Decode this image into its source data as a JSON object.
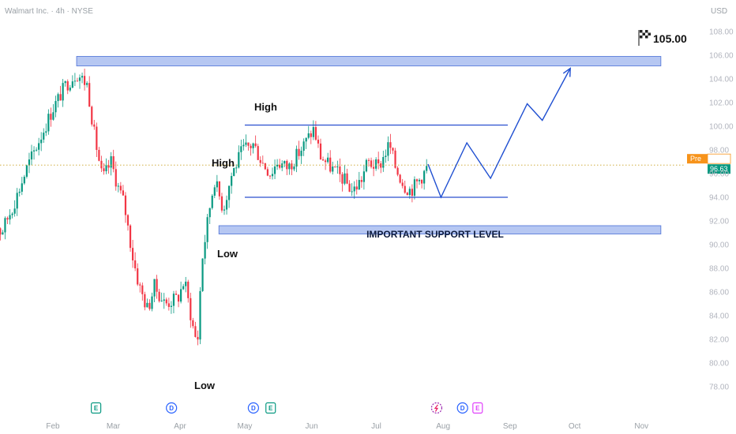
{
  "chart_data": {
    "type": "candlestick",
    "title": "Walmart Inc. · 4h · NYSE",
    "currency": "USD",
    "y_ticks": [
      "78.00",
      "80.00",
      "82.00",
      "84.00",
      "86.00",
      "88.00",
      "90.00",
      "92.00",
      "94.00",
      "96.00",
      "98.00",
      "100.00",
      "102.00",
      "104.00",
      "106.00",
      "108.00"
    ],
    "ylim": [
      77,
      109
    ],
    "x_ticks": [
      "Feb",
      "Mar",
      "Apr",
      "May",
      "Jun",
      "Jul",
      "Aug",
      "Sep",
      "Oct",
      "Nov"
    ],
    "price_path": [
      [
        "Jan 02",
        93.0
      ],
      [
        "Jan 08",
        91.0
      ],
      [
        "Jan 14",
        93.5
      ],
      [
        "Jan 20",
        96.5
      ],
      [
        "Jan 26",
        99.0
      ],
      [
        "Feb 01",
        101.5
      ],
      [
        "Feb 07",
        103.5
      ],
      [
        "Feb 12",
        104.5
      ],
      [
        "Feb 17",
        103.5
      ],
      [
        "Feb 20",
        99.5
      ],
      [
        "Feb 24",
        95.5
      ],
      [
        "Feb 28",
        97.0
      ],
      [
        "Mar 03",
        95.0
      ],
      [
        "Mar 06",
        93.5
      ],
      [
        "Mar 10",
        89.0
      ],
      [
        "Mar 13",
        86.5
      ],
      [
        "Mar 17",
        84.5
      ],
      [
        "Mar 20",
        86.5
      ],
      [
        "Mar 25",
        85.0
      ],
      [
        "Mar 31",
        85.5
      ],
      [
        "Apr 03",
        87.0
      ],
      [
        "Apr 07",
        83.0
      ],
      [
        "Apr 09",
        81.5
      ],
      [
        "Apr 11",
        88.5
      ],
      [
        "Apr 15",
        93.5
      ],
      [
        "Apr 17",
        95.5
      ],
      [
        "Apr 21",
        93.0
      ],
      [
        "Apr 25",
        96.0
      ],
      [
        "Apr 30",
        98.0
      ],
      [
        "May 05",
        98.5
      ],
      [
        "May 09",
        97.0
      ],
      [
        "May 13",
        96.0
      ],
      [
        "May 16",
        97.0
      ],
      [
        "May 21",
        96.5
      ],
      [
        "May 27",
        98.0
      ],
      [
        "Jun 02",
        99.8
      ],
      [
        "Jun 05",
        97.5
      ],
      [
        "Jun 10",
        96.5
      ],
      [
        "Jun 16",
        95.5
      ],
      [
        "Jun 20",
        94.5
      ],
      [
        "Jun 24",
        95.5
      ],
      [
        "Jun 27",
        97.0
      ],
      [
        "Jul 02",
        96.5
      ],
      [
        "Jul 07",
        98.5
      ],
      [
        "Jul 10",
        96.5
      ],
      [
        "Jul 14",
        95.0
      ],
      [
        "Jul 17",
        94.6
      ],
      [
        "Jul 21",
        95.5
      ],
      [
        "Jul 24",
        96.3
      ],
      [
        "Jul 25",
        96.7
      ]
    ],
    "annotations": {
      "high_1": "High",
      "high_2": "High",
      "low_1": "Low",
      "low_2": "Low",
      "support_label": "IMPORTANT SUPPORT LEVEL",
      "target_label": "105.00"
    },
    "zones": [
      {
        "name": "resistance-zone",
        "from": 105.1,
        "to": 105.9
      },
      {
        "name": "support-zone",
        "from": 90.9,
        "to": 91.6
      }
    ],
    "range_lines": [
      {
        "name": "range-top",
        "value": 100.1,
        "from": "May 01",
        "to": "Aug 31"
      },
      {
        "name": "range-bottom",
        "value": 94.0,
        "from": "May 01",
        "to": "Aug 31"
      }
    ],
    "projection": [
      [
        "Jul 25",
        96.8
      ],
      [
        "Jul 31",
        94.0
      ],
      [
        "Aug 12",
        98.6
      ],
      [
        "Aug 23",
        95.6
      ],
      [
        "Sep 09",
        101.9
      ],
      [
        "Sep 16",
        100.5
      ],
      [
        "Sep 29",
        104.9
      ]
    ],
    "price_line": 96.72,
    "badges": {
      "pre_label": "Pre",
      "pre_value": "96.72",
      "last_value": "96.63"
    },
    "events": [
      {
        "date": "Feb 21",
        "label": "E",
        "kind": "earnings"
      },
      {
        "date": "Mar 28",
        "label": "D",
        "kind": "dividend"
      },
      {
        "date": "May 05",
        "label": "D",
        "kind": "dividend"
      },
      {
        "date": "May 13",
        "label": "E",
        "kind": "earnings"
      },
      {
        "date": "Jul 29",
        "label": "",
        "kind": "split-icon"
      },
      {
        "date": "Aug 10",
        "label": "D",
        "kind": "dividend"
      },
      {
        "date": "Aug 17",
        "label": "E",
        "kind": "earnings-future"
      }
    ],
    "colors": {
      "up": "#089981",
      "down": "#f23645",
      "zone_fill": "#a9bdf0",
      "zone_stroke": "#4a6fd6",
      "range_line": "#2a4fcf",
      "projection": "#1f4fd1",
      "price_line": "#c9a227",
      "pre_badge": "#f7931a",
      "last_badge": "#089981",
      "axis_text": "#b2b5be"
    }
  }
}
